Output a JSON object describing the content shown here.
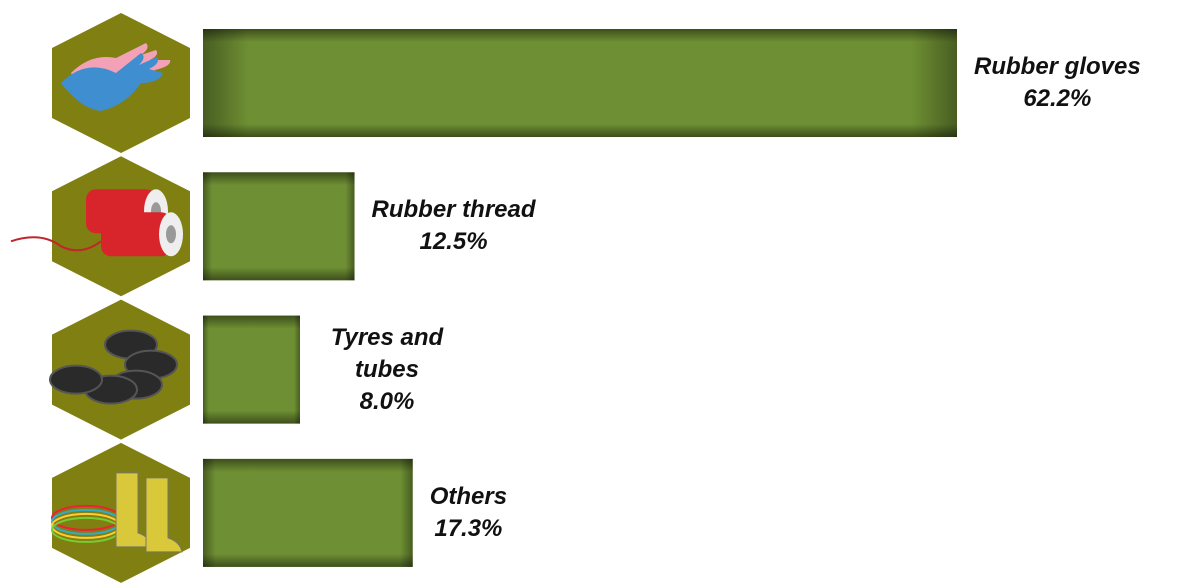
{
  "chart_data": {
    "type": "bar",
    "orientation": "horizontal",
    "categories": [
      "Rubber gloves",
      "Rubber thread",
      "Tyres and tubes",
      "Others"
    ],
    "values": [
      62.2,
      12.5,
      8.0,
      17.3
    ],
    "value_labels": [
      "62.2%",
      "12.5%",
      "8.0%",
      "17.3%"
    ],
    "color": "#6e8f33",
    "icon_color": "#7f7f12"
  }
}
